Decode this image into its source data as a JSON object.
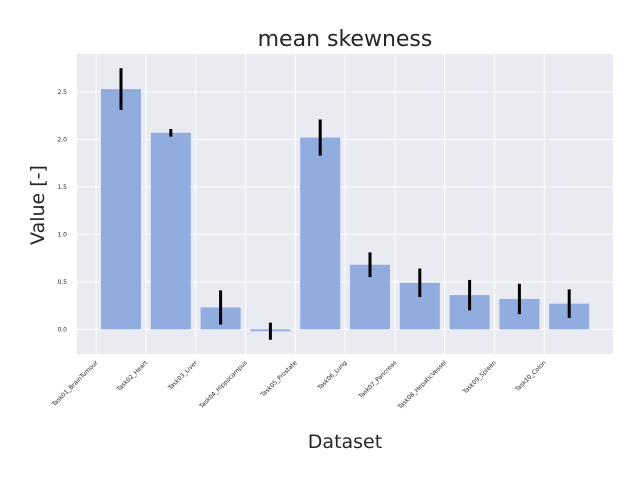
{
  "chart_data": {
    "type": "bar",
    "title": "mean skewness",
    "xlabel": "Dataset",
    "ylabel": "Value [-]",
    "categories": [
      "Task01_BrainTumour",
      "Task02_Heart",
      "Task03_Liver",
      "Task04_Hippocampus",
      "Task05_Prostate",
      "Task06_Lung",
      "Task07_Pancreas",
      "Task08_HepaticVessel",
      "Task09_Spleen",
      "Task10_Colon"
    ],
    "values": [
      2.53,
      2.07,
      0.23,
      -0.02,
      2.02,
      0.68,
      0.49,
      0.36,
      0.32,
      0.27
    ],
    "errors": [
      0.22,
      0.04,
      0.18,
      0.09,
      0.19,
      0.13,
      0.15,
      0.16,
      0.16,
      0.15
    ],
    "ylim": [
      -0.26,
      2.9
    ],
    "yticks": [
      0.0,
      0.5,
      1.0,
      1.5,
      2.0,
      2.5
    ],
    "ytick_labels": [
      "0.0",
      "0.5",
      "1.0",
      "1.5",
      "2.0",
      "2.5"
    ],
    "grid": true,
    "colors": {
      "bar": "#91acde",
      "error": "#000000",
      "background": "#eaeaf2",
      "grid": "#ffffff"
    }
  }
}
